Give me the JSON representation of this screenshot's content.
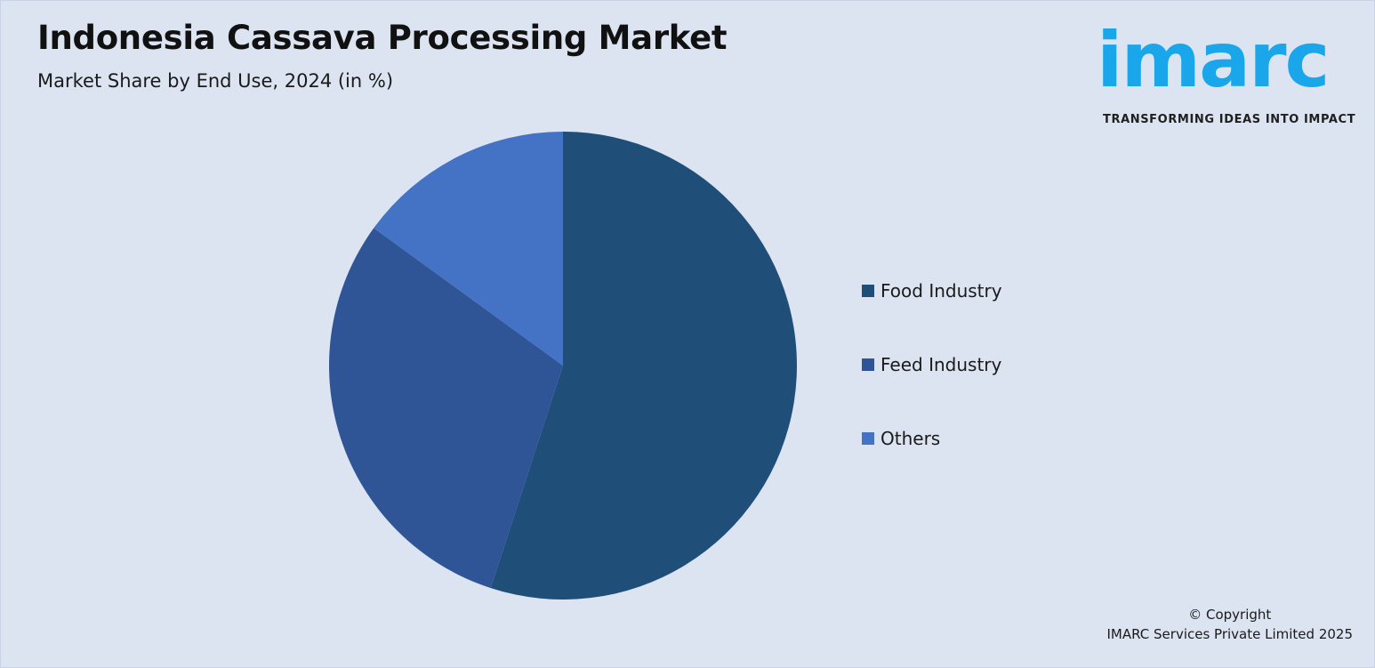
{
  "header": {
    "title": "Indonesia Cassava Processing Market",
    "subtitle": "Market Share by End Use, 2024 (in %)"
  },
  "logo": {
    "wordmark": "imarc",
    "tagline": "TRANSFORMING IDEAS INTO IMPACT",
    "color": "#1aa6ea"
  },
  "chart_data": {
    "type": "pie",
    "title": "Indonesia Cassava Processing Market",
    "subtitle": "Market Share by End Use, 2024 (in %)",
    "categories": [
      "Food Industry",
      "Feed Industry",
      "Others"
    ],
    "values": [
      55,
      30,
      15
    ],
    "colors": [
      "#1f4e79",
      "#2f5597",
      "#4472c4"
    ],
    "legend_position": "right",
    "start_angle": "12 o'clock",
    "direction": "clockwise"
  },
  "footer": {
    "copyright_line1": "© Copyright",
    "copyright_line2": "IMARC Services Private Limited 2025"
  }
}
